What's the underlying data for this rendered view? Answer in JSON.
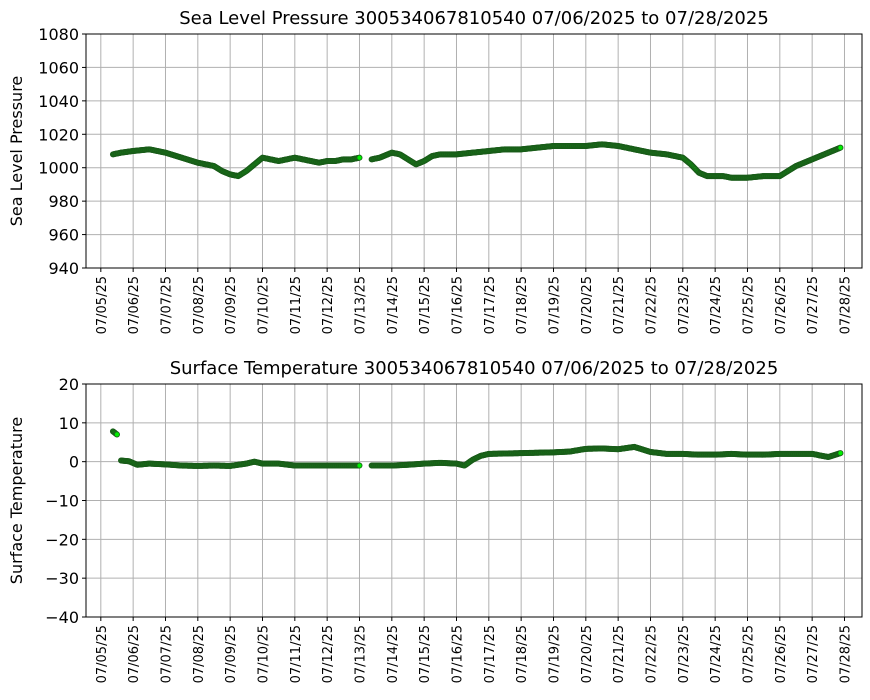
{
  "chart_data": [
    {
      "type": "scatter",
      "title": "Sea Level Pressure 300534067810540  07/06/2025 to 07/28/2025",
      "ylabel": "Sea Level Pressure",
      "xlabel": "",
      "ylim": [
        940,
        1080
      ],
      "yticks": [
        940,
        960,
        980,
        1000,
        1020,
        1040,
        1060,
        1080
      ],
      "xlim": [
        "2025-07-04T13:00",
        "2025-07-28T13:00"
      ],
      "xtick_labels": [
        "07/05/25",
        "07/06/25",
        "07/07/25",
        "07/08/25",
        "07/09/25",
        "07/10/25",
        "07/11/25",
        "07/12/25",
        "07/13/25",
        "07/14/25",
        "07/15/25",
        "07/16/25",
        "07/17/25",
        "07/18/25",
        "07/19/25",
        "07/20/25",
        "07/21/25",
        "07/22/25",
        "07/23/25",
        "07/24/25",
        "07/25/25",
        "07/26/25",
        "07/27/25",
        "07/28/25"
      ],
      "grid": true,
      "marker_color": "#00ee00",
      "marker_edge": "#1a5c1a",
      "series": [
        {
          "x": [
            "2025-07-05T09:00",
            "2025-07-05T15:00",
            "2025-07-06T00:00",
            "2025-07-06T12:00",
            "2025-07-07T00:00",
            "2025-07-07T12:00",
            "2025-07-08T00:00",
            "2025-07-08T12:00",
            "2025-07-08T18:00",
            "2025-07-09T00:00",
            "2025-07-09T06:00",
            "2025-07-09T12:00",
            "2025-07-09T18:00",
            "2025-07-10T00:00",
            "2025-07-10T06:00",
            "2025-07-10T12:00",
            "2025-07-10T18:00",
            "2025-07-11T00:00",
            "2025-07-11T06:00",
            "2025-07-11T12:00",
            "2025-07-11T18:00",
            "2025-07-12T00:00",
            "2025-07-12T06:00",
            "2025-07-12T12:00",
            "2025-07-12T18:00",
            "2025-07-13T00:00"
          ],
          "y": [
            1008,
            1009,
            1010,
            1011,
            1009,
            1006,
            1003,
            1001,
            998,
            996,
            995,
            998,
            1002,
            1006,
            1005,
            1004,
            1005,
            1006,
            1005,
            1004,
            1003,
            1004,
            1004,
            1005,
            1005,
            1006
          ]
        },
        {
          "x": [
            "2025-07-13T09:00",
            "2025-07-13T15:00",
            "2025-07-14T00:00",
            "2025-07-14T06:00",
            "2025-07-14T12:00",
            "2025-07-14T18:00",
            "2025-07-15T00:00",
            "2025-07-15T06:00",
            "2025-07-15T12:00",
            "2025-07-16T00:00",
            "2025-07-16T12:00",
            "2025-07-17T00:00",
            "2025-07-17T12:00",
            "2025-07-18T00:00",
            "2025-07-18T12:00",
            "2025-07-19T00:00",
            "2025-07-19T12:00",
            "2025-07-20T00:00",
            "2025-07-20T12:00",
            "2025-07-21T00:00",
            "2025-07-21T12:00",
            "2025-07-22T00:00",
            "2025-07-22T12:00",
            "2025-07-23T00:00",
            "2025-07-23T06:00",
            "2025-07-23T12:00",
            "2025-07-23T18:00",
            "2025-07-24T00:00",
            "2025-07-24T06:00",
            "2025-07-24T12:00",
            "2025-07-25T00:00",
            "2025-07-25T12:00",
            "2025-07-26T00:00",
            "2025-07-26T06:00",
            "2025-07-26T12:00",
            "2025-07-27T00:00",
            "2025-07-27T12:00",
            "2025-07-27T21:00"
          ],
          "y": [
            1005,
            1006,
            1009,
            1008,
            1005,
            1002,
            1004,
            1007,
            1008,
            1008,
            1009,
            1010,
            1011,
            1011,
            1012,
            1013,
            1013,
            1013,
            1014,
            1013,
            1011,
            1009,
            1008,
            1006,
            1002,
            997,
            995,
            995,
            995,
            994,
            994,
            995,
            995,
            998,
            1001,
            1005,
            1009,
            1012
          ]
        }
      ]
    },
    {
      "type": "scatter",
      "title": "Surface Temperature 300534067810540  07/06/2025 to 07/28/2025",
      "ylabel": "Surface Temperature",
      "xlabel": "",
      "ylim": [
        -40,
        20
      ],
      "yticks": [
        -40,
        -30,
        -20,
        -10,
        0,
        10,
        20
      ],
      "xlim": [
        "2025-07-04T13:00",
        "2025-07-28T13:00"
      ],
      "xtick_labels": [
        "07/05/25",
        "07/06/25",
        "07/07/25",
        "07/08/25",
        "07/09/25",
        "07/10/25",
        "07/11/25",
        "07/12/25",
        "07/13/25",
        "07/14/25",
        "07/15/25",
        "07/16/25",
        "07/17/25",
        "07/18/25",
        "07/19/25",
        "07/20/25",
        "07/21/25",
        "07/22/25",
        "07/23/25",
        "07/24/25",
        "07/25/25",
        "07/26/25",
        "07/27/25",
        "07/28/25"
      ],
      "grid": true,
      "marker_color": "#00ee00",
      "marker_edge": "#1a5c1a",
      "series": [
        {
          "x": [
            "2025-07-05T09:00",
            "2025-07-05T12:00"
          ],
          "y": [
            7.8,
            7.0
          ]
        },
        {
          "x": [
            "2025-07-05T15:00",
            "2025-07-05T21:00",
            "2025-07-06T03:00",
            "2025-07-06T12:00",
            "2025-07-07T00:00",
            "2025-07-07T12:00",
            "2025-07-08T00:00",
            "2025-07-08T12:00",
            "2025-07-09T00:00",
            "2025-07-09T12:00",
            "2025-07-09T18:00",
            "2025-07-10T00:00",
            "2025-07-10T12:00",
            "2025-07-11T00:00",
            "2025-07-11T12:00",
            "2025-07-12T00:00",
            "2025-07-12T12:00",
            "2025-07-13T00:00"
          ],
          "y": [
            0.3,
            0.1,
            -0.8,
            -0.5,
            -0.7,
            -1.0,
            -1.1,
            -1.0,
            -1.1,
            -0.5,
            0.0,
            -0.5,
            -0.5,
            -1.0,
            -1.0,
            -1.0,
            -1.0,
            -1.0
          ]
        },
        {
          "x": [
            "2025-07-13T09:00",
            "2025-07-14T00:00",
            "2025-07-14T12:00",
            "2025-07-15T00:00",
            "2025-07-15T12:00",
            "2025-07-16T00:00",
            "2025-07-16T06:00",
            "2025-07-16T12:00",
            "2025-07-16T18:00",
            "2025-07-17T00:00",
            "2025-07-17T12:00",
            "2025-07-18T00:00",
            "2025-07-18T12:00",
            "2025-07-19T00:00",
            "2025-07-19T12:00",
            "2025-07-20T00:00",
            "2025-07-20T12:00",
            "2025-07-21T00:00",
            "2025-07-21T06:00",
            "2025-07-21T12:00",
            "2025-07-22T00:00",
            "2025-07-22T12:00",
            "2025-07-23T00:00",
            "2025-07-23T12:00",
            "2025-07-24T00:00",
            "2025-07-24T12:00",
            "2025-07-25T00:00",
            "2025-07-25T12:00",
            "2025-07-26T00:00",
            "2025-07-26T12:00",
            "2025-07-27T00:00",
            "2025-07-27T12:00",
            "2025-07-27T21:00"
          ],
          "y": [
            -1.0,
            -1.0,
            -0.8,
            -0.5,
            -0.3,
            -0.5,
            -1.0,
            0.5,
            1.5,
            2.0,
            2.1,
            2.2,
            2.3,
            2.4,
            2.6,
            3.3,
            3.4,
            3.2,
            3.5,
            3.8,
            2.5,
            2.0,
            2.0,
            1.8,
            1.8,
            2.0,
            1.8,
            1.8,
            2.0,
            2.0,
            2.0,
            1.2,
            2.2
          ]
        }
      ]
    }
  ]
}
